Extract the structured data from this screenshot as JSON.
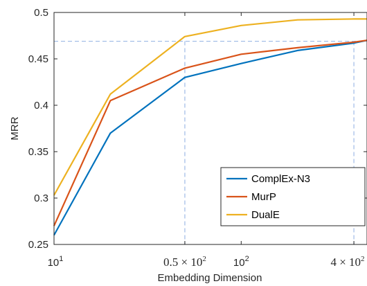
{
  "chart_data": {
    "type": "line",
    "xlabel": "Embedding Dimension",
    "ylabel": "MRR",
    "x_scale": "log",
    "xlim": [
      10,
      470
    ],
    "ylim": [
      0.25,
      0.5
    ],
    "x": [
      10,
      20,
      50,
      100,
      200,
      400,
      470
    ],
    "series": [
      {
        "name": "ComplEx-N3",
        "color": "#0072BD",
        "values": [
          0.26,
          0.37,
          0.43,
          0.445,
          0.459,
          0.467,
          0.47
        ]
      },
      {
        "name": "MurP",
        "color": "#D95319",
        "values": [
          0.27,
          0.405,
          0.44,
          0.455,
          0.462,
          0.468,
          0.47
        ]
      },
      {
        "name": "DualE",
        "color": "#EDB120",
        "values": [
          0.303,
          0.412,
          0.474,
          0.486,
          0.492,
          0.493,
          0.493
        ]
      }
    ],
    "x_ticks": [
      {
        "value": 10,
        "label_base": "10",
        "label_exp": "1",
        "label_pre": "",
        "style": "sans"
      },
      {
        "value": 50,
        "label_base": "10",
        "label_exp": "2",
        "label_pre": "0.5 × ",
        "style": "serif"
      },
      {
        "value": 100,
        "label_base": "10",
        "label_exp": "2",
        "label_pre": "",
        "style": "sans"
      },
      {
        "value": 400,
        "label_base": "10",
        "label_exp": "2",
        "label_pre": "4 × ",
        "style": "serif"
      }
    ],
    "y_ticks": [
      0.25,
      0.3,
      0.35,
      0.4,
      0.45,
      0.5
    ],
    "y_tick_labels": [
      "0.25",
      "0.3",
      "0.35",
      "0.4",
      "0.45",
      "0.5"
    ],
    "reference_lines": {
      "color": "#9DB9E6",
      "horizontal_y": 0.469,
      "vertical_x": [
        50,
        400
      ]
    },
    "legend": {
      "location": "bottom-right"
    },
    "grid": false,
    "axis_color": "#262626"
  }
}
